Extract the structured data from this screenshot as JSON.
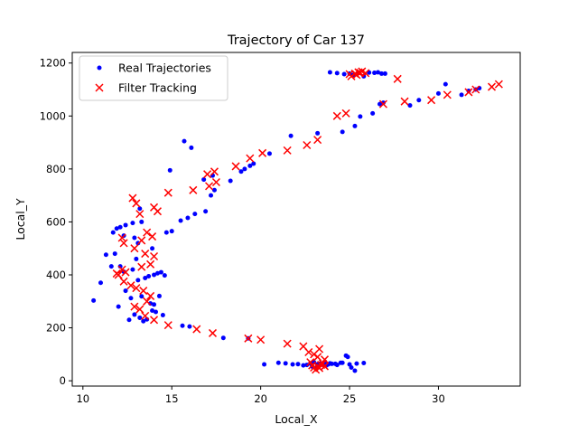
{
  "chart_data": {
    "type": "scatter",
    "title": "Trajectory of Car 137",
    "xlabel": "Local_X",
    "ylabel": "Local_Y",
    "xlim": [
      9.4,
      34.6
    ],
    "ylim": [
      -20,
      1240
    ],
    "xticks": [
      10,
      15,
      20,
      25,
      30
    ],
    "yticks": [
      0,
      200,
      400,
      600,
      800,
      1000,
      1200
    ],
    "grid": false,
    "legend_position": "upper-left",
    "series": [
      {
        "name": "Real Trajectories",
        "marker": "dot",
        "color": "#0000ff",
        "x": [
          23.2,
          22.8,
          23.5,
          23.9,
          24.2,
          24.6,
          25.0,
          25.4,
          25.8,
          22.1,
          21.8,
          21.4,
          21.0,
          22.4,
          22.6,
          23.0,
          23.3,
          24.8,
          24.9,
          25.1,
          25.3,
          23.6,
          23.8,
          22.9,
          23.1,
          23.4,
          23.7,
          24.0,
          24.3,
          24.5,
          20.2,
          19.3,
          17.9,
          16.0,
          15.6,
          14.5,
          14.1,
          13.9,
          13.6,
          13.2,
          12.6,
          12.9,
          13.4,
          13.8,
          14.0,
          14.3,
          13.3,
          12.7,
          12.4,
          12.1,
          11.6,
          11.8,
          11.3,
          11.0,
          10.6,
          12.0,
          12.3,
          12.8,
          13.0,
          13.1,
          13.5,
          13.7,
          14.0,
          14.4,
          14.6,
          14.2,
          13.9,
          13.1,
          12.9,
          12.3,
          12.1,
          11.9,
          11.7,
          12.4,
          12.8,
          13.3,
          13.2,
          14.7,
          15.0,
          15.5,
          15.9,
          16.3,
          16.9,
          17.2,
          17.4,
          16.8,
          16.1,
          15.7,
          14.9,
          17.3,
          18.3,
          18.9,
          19.1,
          19.4,
          19.6,
          20.5,
          21.7,
          23.2,
          24.6,
          25.3,
          25.6,
          26.3,
          26.7,
          26.9,
          28.4,
          28.9,
          30.0,
          30.4,
          31.3,
          31.7,
          32.1,
          32.3,
          25.0,
          25.5,
          26.1,
          26.6,
          27.0,
          24.7,
          24.3,
          23.9,
          25.2,
          25.8,
          26.4,
          26.8
        ],
        "y": [
          62,
          65,
          60,
          66,
          64,
          68,
          62,
          65,
          67,
          63,
          62,
          66,
          68,
          58,
          60,
          70,
          64,
          95,
          90,
          50,
          38,
          68,
          62,
          54,
          48,
          66,
          58,
          64,
          60,
          68,
          62,
          160,
          162,
          205,
          208,
          248,
          260,
          265,
          232,
          238,
          230,
          250,
          225,
          292,
          288,
          320,
          319,
          312,
          340,
          432,
          432,
          480,
          476,
          370,
          303,
          280,
          412,
          420,
          460,
          380,
          388,
          395,
          400,
          410,
          398,
          406,
          500,
          520,
          540,
          548,
          580,
          575,
          560,
          588,
          596,
          600,
          650,
          560,
          565,
          605,
          615,
          630,
          640,
          700,
          720,
          760,
          880,
          905,
          795,
          775,
          755,
          790,
          800,
          812,
          820,
          858,
          925,
          935,
          940,
          962,
          998,
          1010,
          1045,
          1050,
          1040,
          1060,
          1085,
          1120,
          1080,
          1095,
          1100,
          1105,
          1160,
          1162,
          1164,
          1165,
          1160,
          1158,
          1162,
          1165,
          1155,
          1150,
          1163,
          1160
        ]
      },
      {
        "name": "Filter Tracking",
        "marker": "x",
        "color": "#ff0000",
        "x": [
          23.0,
          23.2,
          23.4,
          23.1,
          22.9,
          23.3,
          23.5,
          22.8,
          23.6,
          23.2,
          23.0,
          22.7,
          22.4,
          23.3,
          23.6,
          21.5,
          20.0,
          19.3,
          17.3,
          16.4,
          14.8,
          14.0,
          13.5,
          13.2,
          12.9,
          13.6,
          13.8,
          13.4,
          13.0,
          12.7,
          12.3,
          12.0,
          11.9,
          12.4,
          12.2,
          13.3,
          13.8,
          14.0,
          13.5,
          12.9,
          12.3,
          12.2,
          13.3,
          13.6,
          13.9,
          14.2,
          14.0,
          13.0,
          12.8,
          13.2,
          14.8,
          16.2,
          17.1,
          17.5,
          17.0,
          17.4,
          18.6,
          19.4,
          20.1,
          21.5,
          22.6,
          23.2,
          24.3,
          24.8,
          26.9,
          28.1,
          29.6,
          30.5,
          31.7,
          32.1,
          33.0,
          33.4,
          27.7,
          25.1,
          25.3,
          25.5,
          25.7,
          25.0,
          25.9,
          25.4,
          25.6
        ],
        "y": [
          50,
          55,
          60,
          42,
          58,
          48,
          65,
          70,
          80,
          90,
          100,
          108,
          130,
          120,
          55,
          140,
          155,
          160,
          180,
          195,
          210,
          230,
          245,
          270,
          280,
          300,
          320,
          340,
          350,
          360,
          375,
          400,
          405,
          410,
          420,
          430,
          440,
          470,
          480,
          500,
          520,
          540,
          530,
          560,
          545,
          640,
          655,
          670,
          690,
          630,
          710,
          720,
          735,
          750,
          780,
          790,
          810,
          840,
          860,
          870,
          890,
          910,
          1000,
          1010,
          1045,
          1055,
          1060,
          1080,
          1090,
          1100,
          1110,
          1120,
          1140,
          1150,
          1160,
          1165,
          1168,
          1158,
          1162,
          1155,
          1163
        ]
      }
    ]
  }
}
